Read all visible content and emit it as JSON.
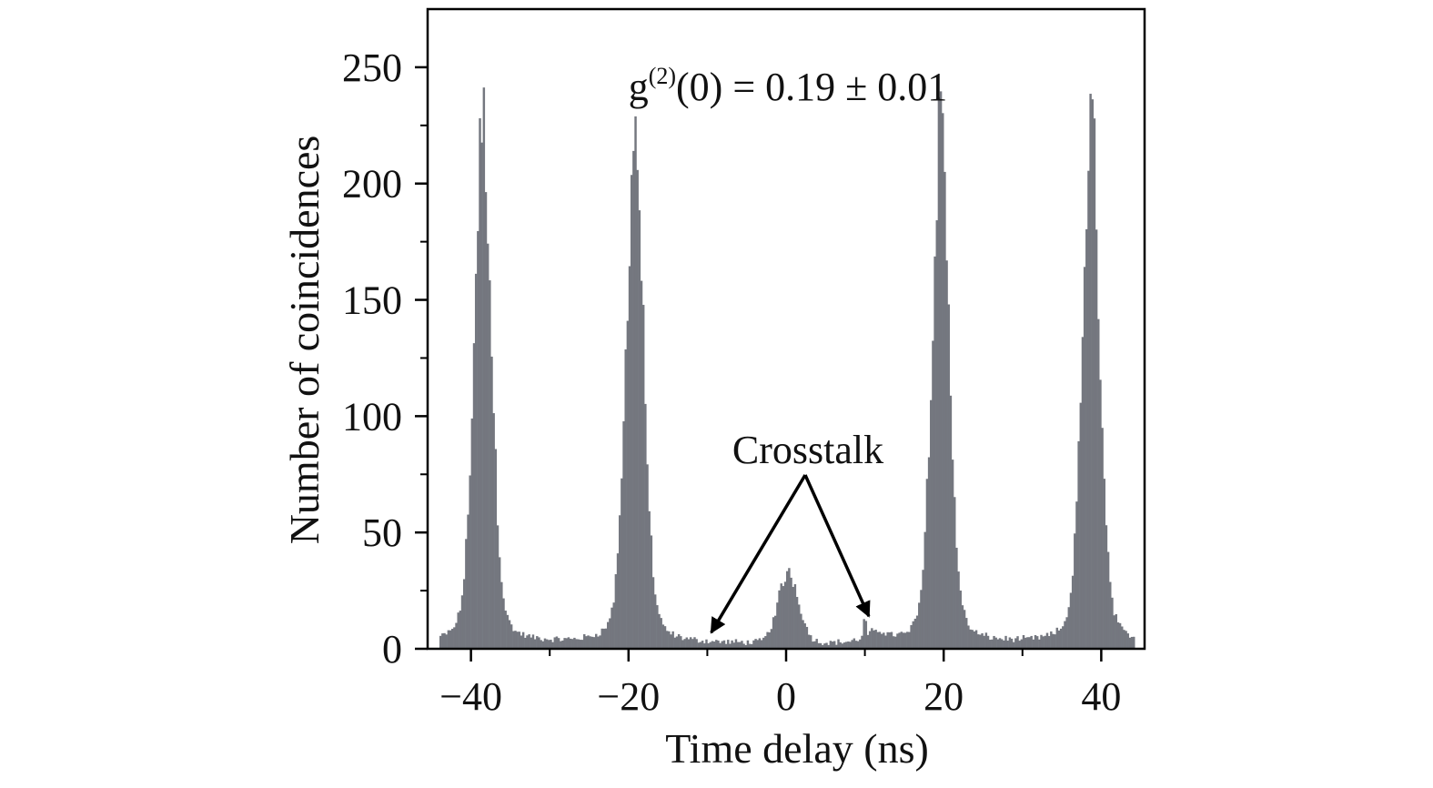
{
  "chart_data": {
    "type": "bar",
    "title": "",
    "xlabel": "Time delay (ns)",
    "ylabel": "Number of coincidences",
    "xlim": [
      -45.5,
      45.5
    ],
    "ylim": [
      0,
      275
    ],
    "grid": false,
    "bar_color": "#74777f",
    "x_ticks": [
      {
        "value": -40,
        "label": "−40"
      },
      {
        "value": -20,
        "label": "−20"
      },
      {
        "value": 0,
        "label": "0"
      },
      {
        "value": 20,
        "label": "20"
      },
      {
        "value": 40,
        "label": "40"
      }
    ],
    "x_minor_ticks": [
      -30,
      -10,
      10,
      30
    ],
    "y_ticks": [
      {
        "value": 0,
        "label": "0"
      },
      {
        "value": 50,
        "label": "50"
      },
      {
        "value": 100,
        "label": "100"
      },
      {
        "value": 150,
        "label": "150"
      },
      {
        "value": 200,
        "label": "200"
      },
      {
        "value": 250,
        "label": "250"
      }
    ],
    "y_minor_ticks": [
      25,
      75,
      125,
      175,
      225
    ],
    "background_level": 2,
    "peaks": [
      {
        "center": -38.5,
        "height": 225
      },
      {
        "center": -19.2,
        "height": 221
      },
      {
        "center": 19.6,
        "height": 220
      },
      {
        "center": 38.7,
        "height": 225
      }
    ],
    "central_peak": {
      "center": 0.3,
      "height": 30
    },
    "crosstalk_peak": {
      "center": 10.0,
      "height": 12
    },
    "annotations": {
      "g2_prefix": "g",
      "g2_superscript": "(2)",
      "g2_suffix": "(0) = 0.19 ± 0.01",
      "crosstalk": "Crosstalk"
    },
    "crosstalk_arrow_targets_x": [
      -9.5,
      10.5
    ]
  }
}
